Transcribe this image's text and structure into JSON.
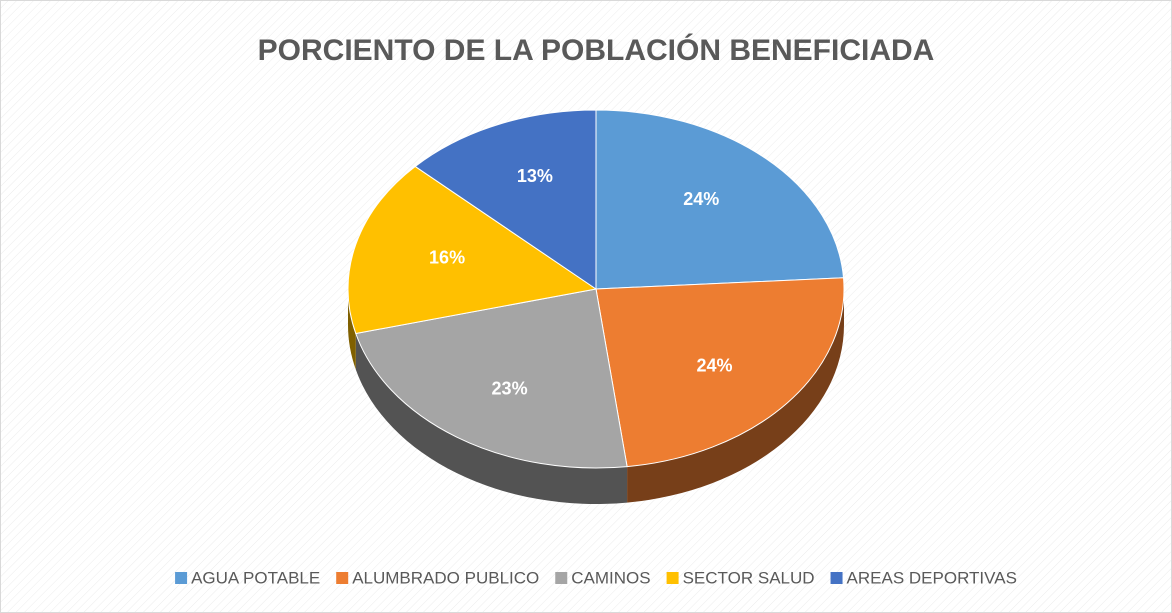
{
  "chart_data": {
    "type": "pie3d",
    "title": "PORCIENTO DE LA  POBLACIÓN BENEFICIADA",
    "categories": [
      "AGUA POTABLE",
      "ALUMBRADO PUBLICO",
      "CAMINOS",
      "SECTOR SALUD",
      "AREAS DEPORTIVAS"
    ],
    "values": [
      24,
      24,
      23,
      16,
      13
    ],
    "value_labels": [
      "24%",
      "24%",
      "23%",
      "16%",
      "13%"
    ],
    "colors": [
      "#5b9bd5",
      "#ed7d31",
      "#a5a5a5",
      "#ffc000",
      "#4472c4"
    ],
    "legend": "bottom"
  }
}
